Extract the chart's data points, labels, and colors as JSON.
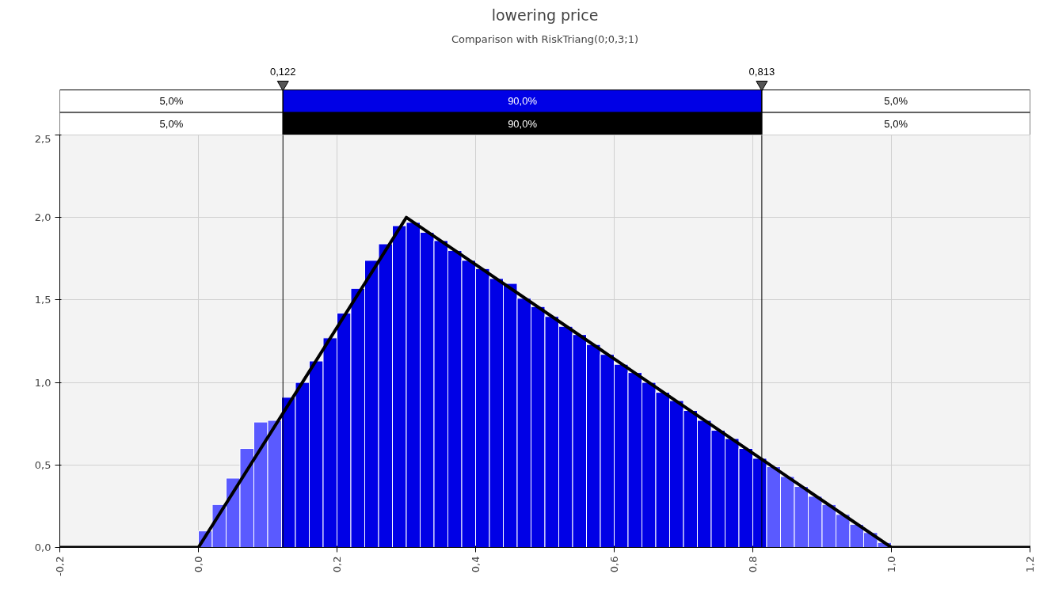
{
  "chart_data": {
    "type": "histogram",
    "title": "lowering price",
    "subtitle": "Comparison with RiskTriang(0;0,3;1)",
    "bins": [
      0,
      0.02,
      0.04,
      0.06,
      0.08,
      0.1,
      0.12,
      0.14,
      0.16,
      0.18,
      0.2,
      0.22,
      0.24,
      0.26,
      0.28,
      0.3,
      0.32,
      0.34,
      0.36,
      0.38,
      0.4,
      0.42,
      0.44,
      0.46,
      0.48,
      0.5,
      0.52,
      0.54,
      0.56,
      0.58,
      0.6,
      0.62,
      0.64,
      0.66,
      0.68,
      0.7,
      0.72,
      0.74,
      0.76,
      0.78,
      0.8,
      0.82,
      0.84,
      0.86,
      0.88,
      0.9,
      0.92,
      0.94,
      0.96,
      0.98,
      1.0
    ],
    "values": [
      0.1,
      0.26,
      0.42,
      0.6,
      0.76,
      0.77,
      0.91,
      1.0,
      1.13,
      1.27,
      1.42,
      1.57,
      1.74,
      1.84,
      1.95,
      1.97,
      1.91,
      1.86,
      1.8,
      1.74,
      1.69,
      1.63,
      1.6,
      1.51,
      1.46,
      1.4,
      1.34,
      1.29,
      1.23,
      1.17,
      1.11,
      1.06,
      1.0,
      0.94,
      0.89,
      0.83,
      0.77,
      0.71,
      0.66,
      0.6,
      0.54,
      0.49,
      0.43,
      0.37,
      0.31,
      0.26,
      0.2,
      0.14,
      0.09,
      0.03
    ],
    "colors": [
      "#5a5aff",
      "#5a5aff",
      "#5a5aff",
      "#5a5aff",
      "#5a5aff",
      "#5a5aff",
      "#0000e6",
      "#0000e6",
      "#0000e6",
      "#0000e6",
      "#0000e6",
      "#0000e6",
      "#0000e6",
      "#0000e6",
      "#0000e6",
      "#0000e6",
      "#0000e6",
      "#0000e6",
      "#0000e6",
      "#0000e6",
      "#0000e6",
      "#0000e6",
      "#0000e6",
      "#0000e6",
      "#0000e6",
      "#0000e6",
      "#0000e6",
      "#0000e6",
      "#0000e6",
      "#0000e6",
      "#0000e6",
      "#0000e6",
      "#0000e6",
      "#0000e6",
      "#0000e6",
      "#0000e6",
      "#0000e6",
      "#0000e6",
      "#0000e6",
      "#0000e6",
      "#0000e6",
      "#5a5aff",
      "#5a5aff",
      "#5a5aff",
      "#5a5aff",
      "#5a5aff",
      "#5a5aff",
      "#5a5aff",
      "#5a5aff",
      "#5a5aff"
    ],
    "series": [
      {
        "type": "line",
        "x": [
          -0.2,
          0,
          0.3,
          1,
          1.2
        ],
        "values": [
          0,
          0,
          2,
          0,
          0
        ],
        "color": "#000000"
      }
    ],
    "xlim": [
      -0.2,
      1.2
    ],
    "ylim": [
      0,
      2.5
    ],
    "xticks": [
      {
        "value": -0.2,
        "label": "-0,2"
      },
      {
        "value": 0,
        "label": "0,0"
      },
      {
        "value": 0.2,
        "label": "0,2"
      },
      {
        "value": 0.4,
        "label": "0,4"
      },
      {
        "value": 0.6,
        "label": "0,6"
      },
      {
        "value": 0.8,
        "label": "0,8"
      },
      {
        "value": 1.0,
        "label": "1,0"
      },
      {
        "value": 1.2,
        "label": "1,2"
      }
    ],
    "yticks": [
      {
        "value": 0,
        "label": "0,0"
      },
      {
        "value": 0.5,
        "label": "0,5"
      },
      {
        "value": 1.0,
        "label": "1,0"
      },
      {
        "value": 1.5,
        "label": "1,5"
      },
      {
        "value": 2.0,
        "label": "2,0"
      },
      {
        "value": 2.5,
        "label": "2,5"
      }
    ],
    "ref_lines": [
      {
        "axis": "x",
        "value": 0.122,
        "label": "0,122",
        "color": "#000000"
      },
      {
        "axis": "x",
        "value": 0.813,
        "label": "0,813",
        "color": "#000000"
      }
    ],
    "annotations": [
      "5,0%",
      "90,0%",
      "5,0%",
      "5,0%",
      "90,0%",
      "5,0%"
    ],
    "grid": true,
    "line_style": "solid",
    "marker": "none"
  }
}
